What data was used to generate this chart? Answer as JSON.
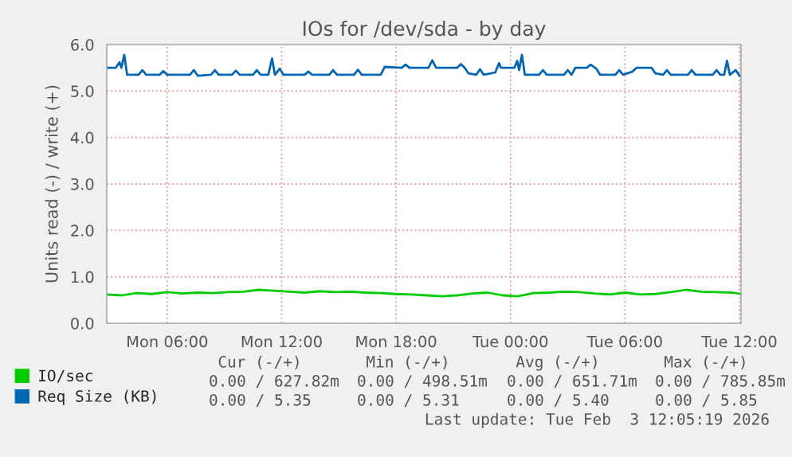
{
  "chart_data": {
    "type": "line",
    "title": "IOs for /dev/sda - by day",
    "ylabel": "Units read (-) / write (+)",
    "xlim": [
      "2026-02-02T02:50",
      "2026-02-03T12:05"
    ],
    "xticks": [
      {
        "value": "2026-02-02T06:00",
        "label": "Mon 06:00"
      },
      {
        "value": "2026-02-02T12:00",
        "label": "Mon 12:00"
      },
      {
        "value": "2026-02-02T18:00",
        "label": "Mon 18:00"
      },
      {
        "value": "2026-02-03T00:00",
        "label": "Tue 00:00"
      },
      {
        "value": "2026-02-03T06:00",
        "label": "Tue 06:00"
      },
      {
        "value": "2026-02-03T12:00",
        "label": "Tue 12:00"
      }
    ],
    "ylim": [
      0,
      6
    ],
    "yticks": [
      {
        "value": 0,
        "label": "0.0"
      },
      {
        "value": 1,
        "label": "1.0"
      },
      {
        "value": 2,
        "label": "2.0"
      },
      {
        "value": 3,
        "label": "3.0"
      },
      {
        "value": 4,
        "label": "4.0"
      },
      {
        "value": 5,
        "label": "5.0"
      },
      {
        "value": 6,
        "label": "6.0"
      }
    ],
    "grid": true,
    "legend": "bottom",
    "series": [
      {
        "name": "IO/sec",
        "color": "#00cc00",
        "x": [
          "2026-02-02T02:50",
          "2026-02-02T03:36",
          "2026-02-02T04:24",
          "2026-02-02T05:12",
          "2026-02-02T06:00",
          "2026-02-02T06:48",
          "2026-02-02T07:36",
          "2026-02-02T08:24",
          "2026-02-02T09:12",
          "2026-02-02T10:00",
          "2026-02-02T10:48",
          "2026-02-02T11:36",
          "2026-02-02T12:24",
          "2026-02-02T13:12",
          "2026-02-02T14:00",
          "2026-02-02T14:48",
          "2026-02-02T15:36",
          "2026-02-02T16:24",
          "2026-02-02T17:12",
          "2026-02-02T18:00",
          "2026-02-02T18:48",
          "2026-02-02T19:36",
          "2026-02-02T20:24",
          "2026-02-02T21:12",
          "2026-02-02T22:00",
          "2026-02-02T22:48",
          "2026-02-02T23:36",
          "2026-02-03T00:24",
          "2026-02-03T01:12",
          "2026-02-03T02:00",
          "2026-02-03T02:48",
          "2026-02-03T03:36",
          "2026-02-03T04:24",
          "2026-02-03T05:12",
          "2026-02-03T06:00",
          "2026-02-03T06:48",
          "2026-02-03T07:36",
          "2026-02-03T08:24",
          "2026-02-03T09:12",
          "2026-02-03T10:00",
          "2026-02-03T10:48",
          "2026-02-03T11:36",
          "2026-02-03T12:05"
        ],
        "values": [
          0.62,
          0.6,
          0.65,
          0.63,
          0.67,
          0.64,
          0.66,
          0.65,
          0.67,
          0.68,
          0.72,
          0.7,
          0.68,
          0.66,
          0.69,
          0.67,
          0.68,
          0.66,
          0.65,
          0.63,
          0.62,
          0.6,
          0.58,
          0.6,
          0.64,
          0.66,
          0.6,
          0.58,
          0.65,
          0.66,
          0.68,
          0.67,
          0.64,
          0.62,
          0.66,
          0.62,
          0.63,
          0.67,
          0.72,
          0.68,
          0.67,
          0.66,
          0.63
        ]
      },
      {
        "name": "Req Size (KB)",
        "color": "#0066b3",
        "x": [
          "2026-02-02T02:50",
          "2026-02-02T03:18",
          "2026-02-02T03:30",
          "2026-02-02T03:36",
          "2026-02-02T03:45",
          "2026-02-02T03:54",
          "2026-02-02T04:30",
          "2026-02-02T04:42",
          "2026-02-02T04:54",
          "2026-02-02T05:36",
          "2026-02-02T05:48",
          "2026-02-02T06:00",
          "2026-02-02T07:12",
          "2026-02-02T07:24",
          "2026-02-02T07:36",
          "2026-02-02T08:18",
          "2026-02-02T08:30",
          "2026-02-02T08:42",
          "2026-02-02T09:24",
          "2026-02-02T09:36",
          "2026-02-02T09:48",
          "2026-02-02T10:30",
          "2026-02-02T10:42",
          "2026-02-02T10:54",
          "2026-02-02T11:18",
          "2026-02-02T11:30",
          "2026-02-02T11:39",
          "2026-02-02T11:54",
          "2026-02-02T12:06",
          "2026-02-02T13:12",
          "2026-02-02T13:24",
          "2026-02-02T13:36",
          "2026-02-02T14:30",
          "2026-02-02T14:42",
          "2026-02-02T14:54",
          "2026-02-02T15:48",
          "2026-02-02T16:00",
          "2026-02-02T16:12",
          "2026-02-02T17:12",
          "2026-02-02T17:24",
          "2026-02-02T18:18",
          "2026-02-02T18:30",
          "2026-02-02T18:42",
          "2026-02-02T19:42",
          "2026-02-02T19:54",
          "2026-02-02T20:06",
          "2026-02-02T21:12",
          "2026-02-02T21:24",
          "2026-02-02T21:36",
          "2026-02-02T21:48",
          "2026-02-02T22:12",
          "2026-02-02T22:24",
          "2026-02-02T22:36",
          "2026-02-02T23:12",
          "2026-02-02T23:24",
          "2026-02-02T23:30",
          "2026-02-03T00:12",
          "2026-02-03T00:21",
          "2026-02-03T00:27",
          "2026-02-03T00:36",
          "2026-02-03T00:45",
          "2026-02-03T01:30",
          "2026-02-03T01:42",
          "2026-02-03T01:54",
          "2026-02-03T02:48",
          "2026-02-03T03:00",
          "2026-02-03T03:12",
          "2026-02-03T03:24",
          "2026-02-03T04:00",
          "2026-02-03T04:12",
          "2026-02-03T04:30",
          "2026-02-03T04:42",
          "2026-02-03T05:30",
          "2026-02-03T05:42",
          "2026-02-03T05:54",
          "2026-02-03T06:24",
          "2026-02-03T06:36",
          "2026-02-03T07:24",
          "2026-02-03T07:36",
          "2026-02-03T08:00",
          "2026-02-03T08:12",
          "2026-02-03T08:24",
          "2026-02-03T09:18",
          "2026-02-03T09:30",
          "2026-02-03T09:42",
          "2026-02-03T10:36",
          "2026-02-03T10:48",
          "2026-02-03T11:00",
          "2026-02-03T11:12",
          "2026-02-03T11:21",
          "2026-02-03T11:30",
          "2026-02-03T11:48",
          "2026-02-03T12:00",
          "2026-02-03T12:05"
        ],
        "values": [
          5.5,
          5.5,
          5.62,
          5.5,
          5.78,
          5.35,
          5.35,
          5.45,
          5.35,
          5.35,
          5.43,
          5.35,
          5.35,
          5.45,
          5.33,
          5.35,
          5.45,
          5.35,
          5.35,
          5.44,
          5.35,
          5.35,
          5.45,
          5.35,
          5.35,
          5.7,
          5.35,
          5.48,
          5.35,
          5.35,
          5.42,
          5.35,
          5.35,
          5.45,
          5.35,
          5.35,
          5.46,
          5.35,
          5.35,
          5.52,
          5.5,
          5.57,
          5.5,
          5.5,
          5.66,
          5.5,
          5.5,
          5.58,
          5.5,
          5.38,
          5.35,
          5.47,
          5.35,
          5.4,
          5.6,
          5.5,
          5.5,
          5.65,
          5.45,
          5.78,
          5.35,
          5.35,
          5.45,
          5.35,
          5.35,
          5.45,
          5.35,
          5.5,
          5.5,
          5.57,
          5.48,
          5.35,
          5.35,
          5.45,
          5.35,
          5.42,
          5.5,
          5.5,
          5.38,
          5.35,
          5.45,
          5.35,
          5.35,
          5.45,
          5.35,
          5.35,
          5.45,
          5.35,
          5.35,
          5.65,
          5.35,
          5.45,
          5.33,
          5.33
        ]
      }
    ],
    "annotations": [
      "Cur (-/+)",
      "Min (-/+)",
      "Avg (-/+)",
      "Max (-/+)",
      "0.00 / 627.82m",
      "0.00 / 498.51m",
      "0.00 / 651.71m",
      "0.00 / 785.85m",
      "0.00 / 5.35",
      "0.00 / 5.31",
      "0.00 / 5.40",
      "0.00 / 5.85",
      "Last update: Tue Feb  3 12:05:19 2026"
    ]
  }
}
